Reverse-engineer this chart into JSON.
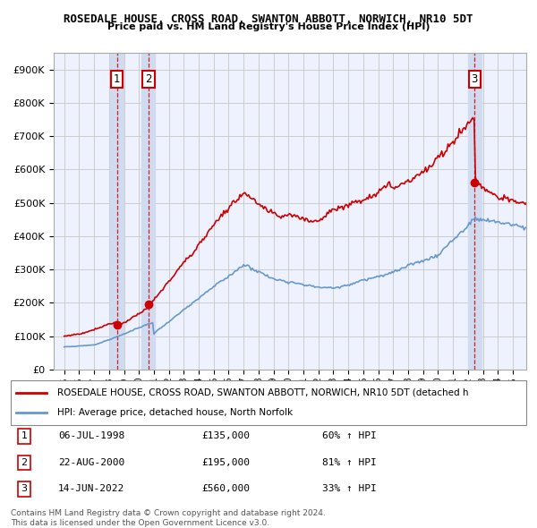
{
  "title": "ROSEDALE HOUSE, CROSS ROAD, SWANTON ABBOTT, NORWICH, NR10 5DT",
  "subtitle": "Price paid vs. HM Land Registry's House Price Index (HPI)",
  "ylim": [
    0,
    950000
  ],
  "yticks": [
    0,
    100000,
    200000,
    300000,
    400000,
    500000,
    600000,
    700000,
    800000,
    900000
  ],
  "ytick_labels": [
    "£0",
    "£100K",
    "£200K",
    "£300K",
    "£400K",
    "£500K",
    "£600K",
    "£700K",
    "£800K",
    "£900K"
  ],
  "transactions": [
    {
      "num": 1,
      "date": "06-JUL-1998",
      "price": 135000,
      "pct": "60%",
      "year": 1998.52
    },
    {
      "num": 2,
      "date": "22-AUG-2000",
      "price": 195000,
      "pct": "81%",
      "year": 2000.64
    },
    {
      "num": 3,
      "date": "14-JUN-2022",
      "price": 560000,
      "pct": "33%",
      "year": 2022.45
    }
  ],
  "legend_red": "ROSEDALE HOUSE, CROSS ROAD, SWANTON ABBOTT, NORWICH, NR10 5DT (detached h",
  "legend_blue": "HPI: Average price, detached house, North Norfolk",
  "footer1": "Contains HM Land Registry data © Crown copyright and database right 2024.",
  "footer2": "This data is licensed under the Open Government Licence v3.0.",
  "red_color": "#cc0000",
  "blue_color": "#6699cc",
  "bg_color": "#eef2ff",
  "grid_color": "#cccccc",
  "shade_color": "#d0dbf0"
}
